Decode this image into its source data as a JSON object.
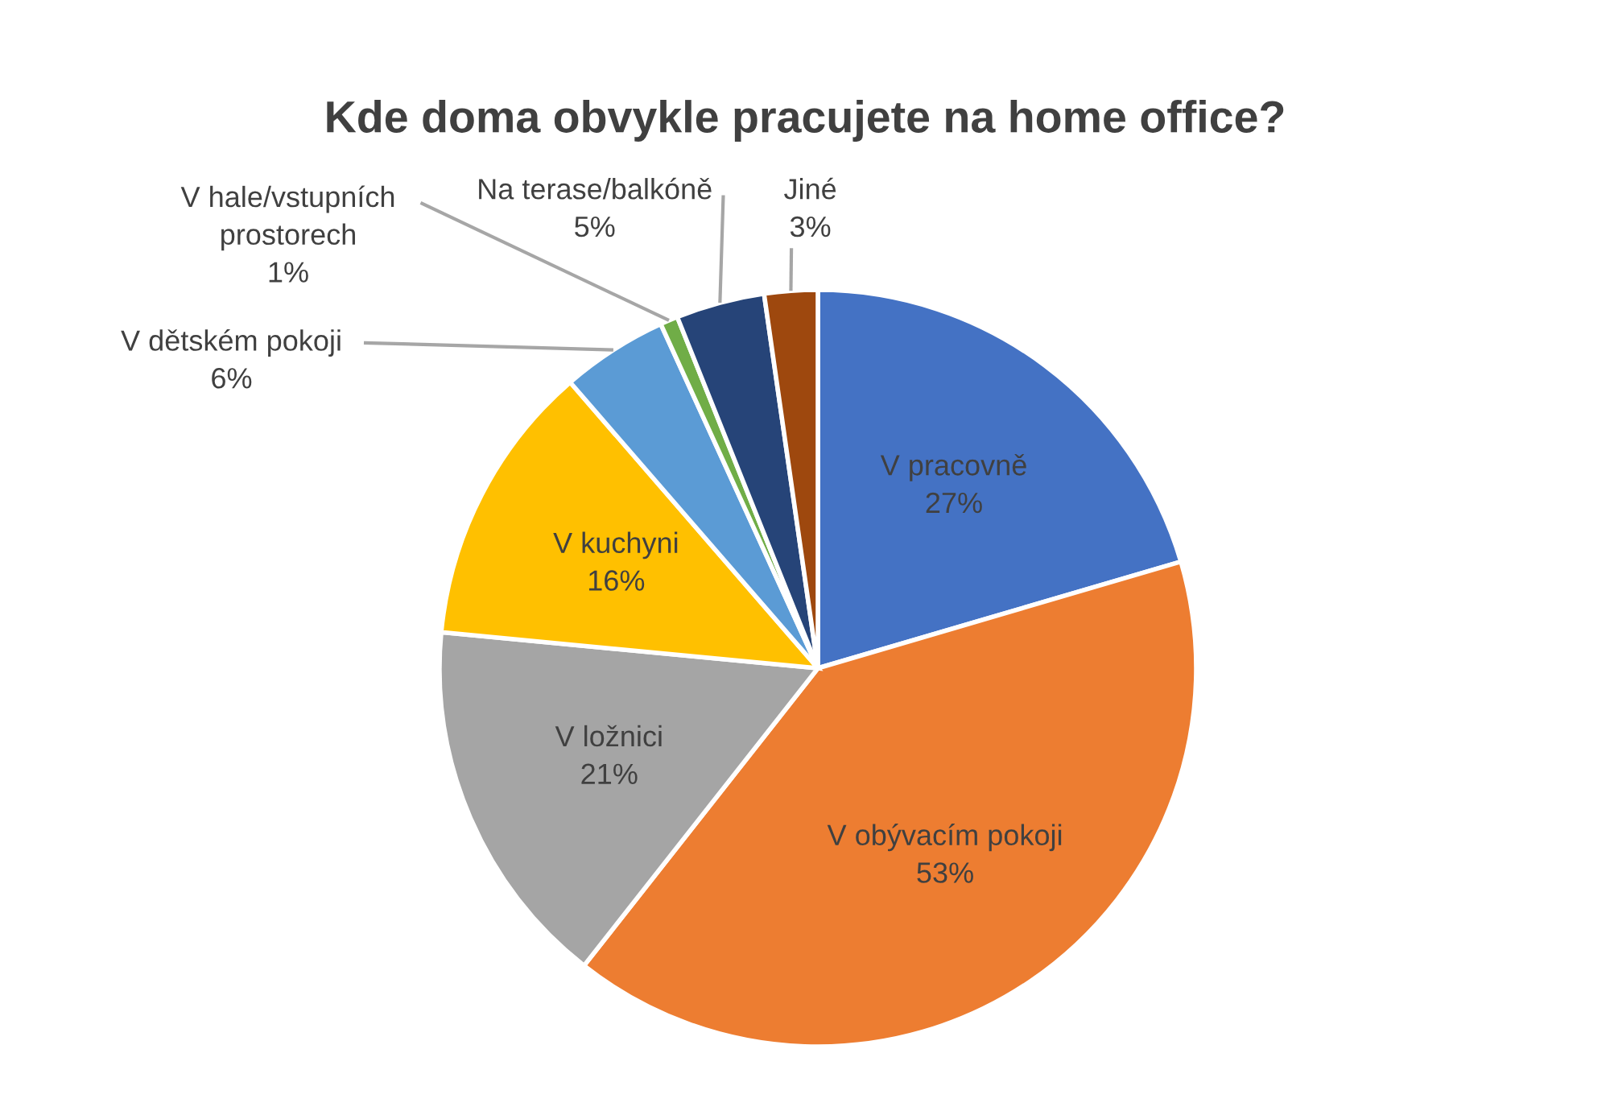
{
  "chart_data": {
    "type": "pie",
    "title": "Kde doma obvykle pracujete na home office?",
    "categories": [
      "V pracovně",
      "V obývacím pokoji",
      "V ložnici",
      "V kuchyni",
      "V dětském pokoji",
      "V hale/vstupních prostorech",
      "Na terase/balkóně",
      "Jiné"
    ],
    "values": [
      27,
      53,
      21,
      16,
      6,
      1,
      5,
      3
    ],
    "value_labels": [
      "27%",
      "53%",
      "21%",
      "16%",
      "6%",
      "1%",
      "5%",
      "3%"
    ],
    "colors": [
      "#4472c4",
      "#ed7d31",
      "#a5a5a5",
      "#ffc000",
      "#5b9bd5",
      "#70ad47",
      "#264478",
      "#9e480e"
    ]
  }
}
